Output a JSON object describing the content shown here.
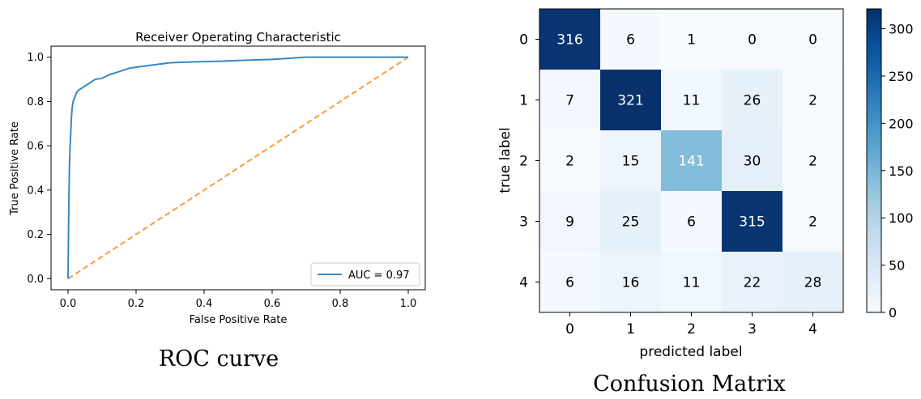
{
  "captions": {
    "left": "ROC curve",
    "right": "Confusion Matrix"
  },
  "colors": {
    "roc_line": "#3a87c2",
    "diagonal": "#fd9a3a",
    "cmap_low": "#f7fbff",
    "cmap_high": "#08306b"
  },
  "chart_data": [
    {
      "type": "line",
      "title": "Receiver Operating Characteristic",
      "xlabel": "False Positive Rate",
      "ylabel": "True Positive Rate",
      "xlim": [
        -0.05,
        1.05
      ],
      "ylim": [
        -0.05,
        1.05
      ],
      "xticks": [
        "0.0",
        "0.2",
        "0.4",
        "0.6",
        "0.8",
        "1.0"
      ],
      "yticks": [
        "0.0",
        "0.2",
        "0.4",
        "0.6",
        "0.8",
        "1.0"
      ],
      "grid": false,
      "legend_position": "lower-right",
      "series": [
        {
          "name": "AUC = 0.97",
          "style": "solid",
          "x": [
            0,
            0.002,
            0.004,
            0.006,
            0.008,
            0.01,
            0.012,
            0.015,
            0.02,
            0.025,
            0.03,
            0.04,
            0.05,
            0.06,
            0.08,
            0.1,
            0.12,
            0.15,
            0.18,
            0.2,
            0.25,
            0.3,
            0.35,
            0.4,
            0.45,
            0.5,
            0.55,
            0.6,
            0.65,
            0.7,
            0.8,
            0.9,
            1.0
          ],
          "y": [
            0,
            0.3,
            0.5,
            0.6,
            0.66,
            0.73,
            0.77,
            0.8,
            0.82,
            0.84,
            0.85,
            0.86,
            0.87,
            0.88,
            0.9,
            0.905,
            0.92,
            0.935,
            0.95,
            0.955,
            0.965,
            0.975,
            0.978,
            0.98,
            0.982,
            0.985,
            0.988,
            0.99,
            0.995,
            1.0,
            1.0,
            1.0,
            1.0
          ]
        },
        {
          "name": "",
          "style": "dashed",
          "x": [
            0,
            1
          ],
          "y": [
            0,
            1
          ]
        }
      ]
    },
    {
      "type": "heatmap",
      "xlabel": "predicted label",
      "ylabel": "true label",
      "x_categories": [
        "0",
        "1",
        "2",
        "3",
        "4"
      ],
      "y_categories": [
        "0",
        "1",
        "2",
        "3",
        "4"
      ],
      "values": [
        [
          316,
          6,
          1,
          0,
          0
        ],
        [
          7,
          321,
          11,
          26,
          2
        ],
        [
          2,
          15,
          141,
          30,
          2
        ],
        [
          9,
          25,
          6,
          315,
          2
        ],
        [
          6,
          16,
          11,
          22,
          28
        ]
      ],
      "vmin": 0,
      "vmax": 321,
      "colorbar_ticks": [
        "0",
        "50",
        "100",
        "150",
        "200",
        "250",
        "300"
      ]
    }
  ]
}
